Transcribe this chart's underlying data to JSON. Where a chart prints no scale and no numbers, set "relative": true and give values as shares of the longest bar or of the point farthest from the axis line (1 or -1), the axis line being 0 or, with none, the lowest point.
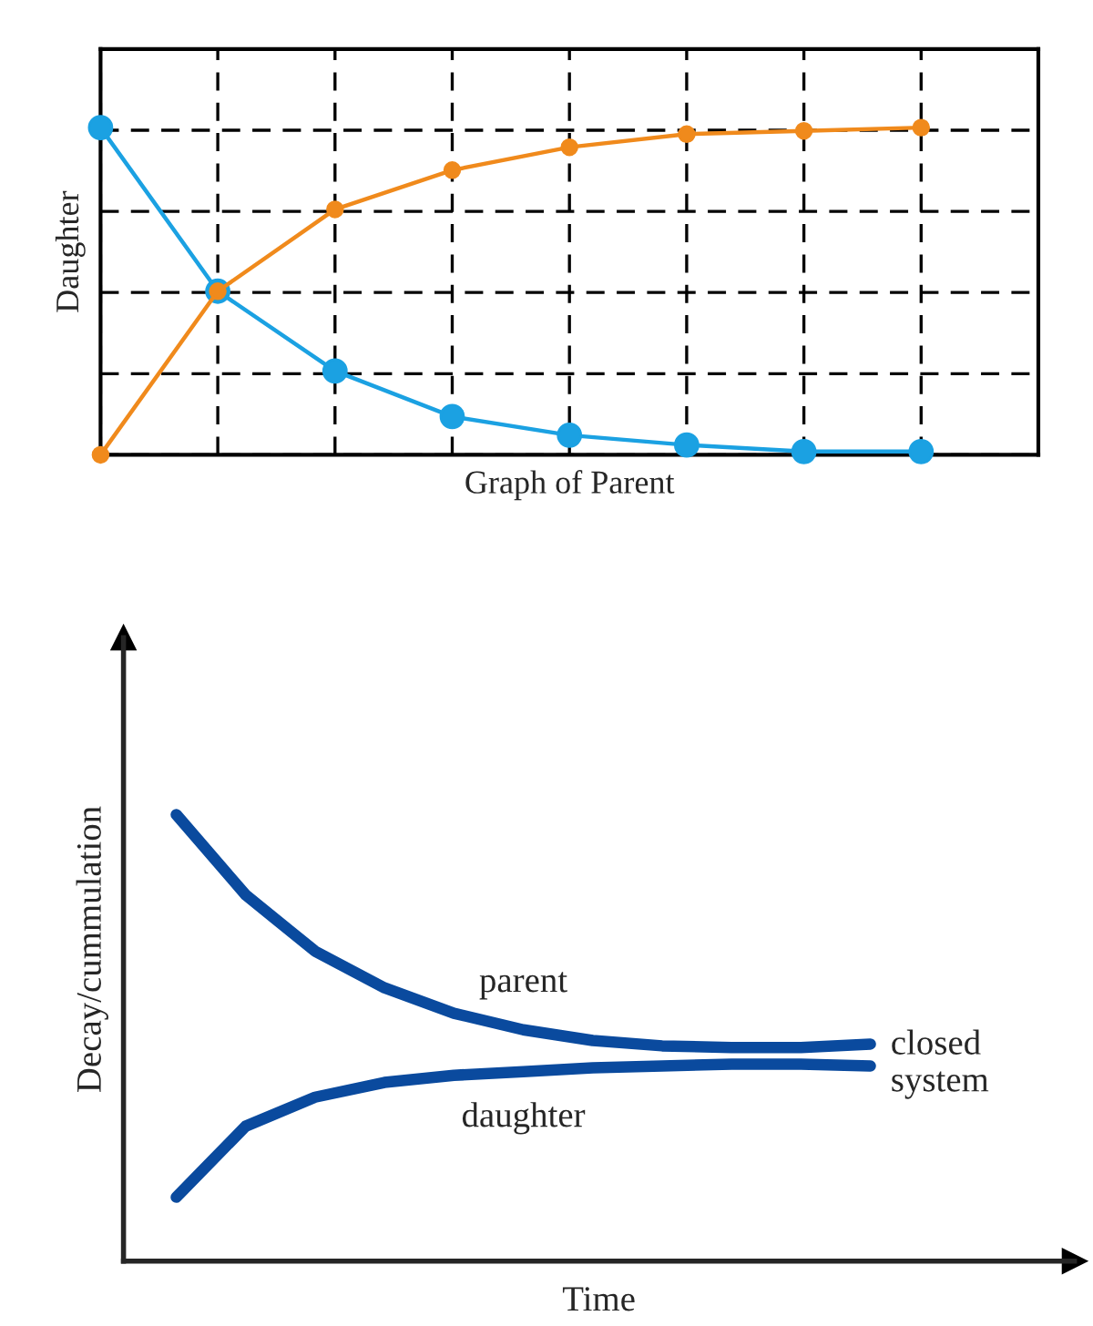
{
  "chart_data": [
    {
      "type": "line",
      "relative": true,
      "xlabel": "Graph of Parent",
      "ylabel": "Daughter",
      "grid": true,
      "marker": "circle",
      "line_style": "solid",
      "categories": [
        null,
        null,
        null,
        null,
        null,
        null,
        null,
        null
      ],
      "series": [
        {
          "color": "#1ba1e2",
          "values": [
            1.0,
            0.5,
            0.256,
            0.117,
            0.06,
            0.03,
            0.01,
            0.01
          ]
        },
        {
          "color": "#f08a1c",
          "values": [
            0.0,
            0.5,
            0.75,
            0.87,
            0.94,
            0.98,
            0.99,
            1.0
          ]
        }
      ]
    },
    {
      "type": "line",
      "relative": true,
      "xlabel": "Time",
      "ylabel": "Decay/cummulation",
      "grid": false,
      "marker": "none",
      "line_style": "solid",
      "categories": [
        null,
        null,
        null,
        null,
        null,
        null,
        null,
        null,
        null,
        null,
        null
      ],
      "series": [
        {
          "name": "parent",
          "color": "#0a4a9e",
          "values": [
            1.0,
            0.82,
            0.694,
            0.612,
            0.555,
            0.518,
            0.494,
            0.482,
            0.478,
            0.478,
            0.486
          ]
        },
        {
          "name": "daughter",
          "color": "#0a4a9e",
          "values": [
            0.143,
            0.302,
            0.367,
            0.4,
            0.416,
            0.424,
            0.433,
            0.437,
            0.441,
            0.441,
            0.437
          ]
        }
      ],
      "annotations": [
        "closed\nsystem"
      ]
    }
  ]
}
